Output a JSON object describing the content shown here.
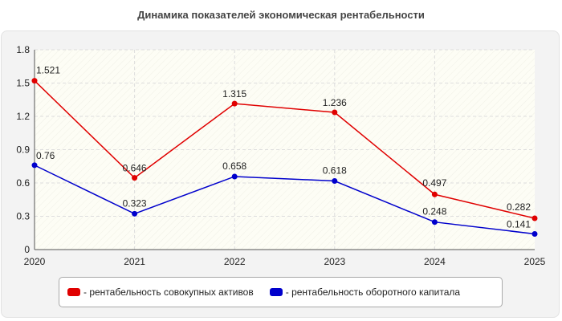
{
  "title": "Динамика показателей экономическая рентабельности",
  "chart_data": {
    "type": "line",
    "title": "Динамика показателей экономическая рентабельности",
    "categories": [
      "2020",
      "2021",
      "2022",
      "2023",
      "2024",
      "2025"
    ],
    "y_ticks": [
      "0",
      "0.3",
      "0.6",
      "0.9",
      "1.2",
      "1.5",
      "1.8"
    ],
    "ylim": [
      0,
      1.8
    ],
    "grid": true,
    "legend_position": "bottom",
    "series": [
      {
        "name": "- рентабельность совокупных активов",
        "color": "#e00000",
        "values": [
          1.521,
          0.646,
          1.315,
          1.236,
          0.497,
          0.282
        ],
        "labels": [
          "1.521",
          "0.646",
          "1.315",
          "1.236",
          "0.497",
          "0.282"
        ]
      },
      {
        "name": "- рентабельность оборотного капитала",
        "color": "#0000cc",
        "values": [
          0.76,
          0.323,
          0.658,
          0.618,
          0.248,
          0.141
        ],
        "labels": [
          "0.76",
          "0.323",
          "0.658",
          "0.618",
          "0.248",
          "0.141"
        ]
      }
    ]
  }
}
